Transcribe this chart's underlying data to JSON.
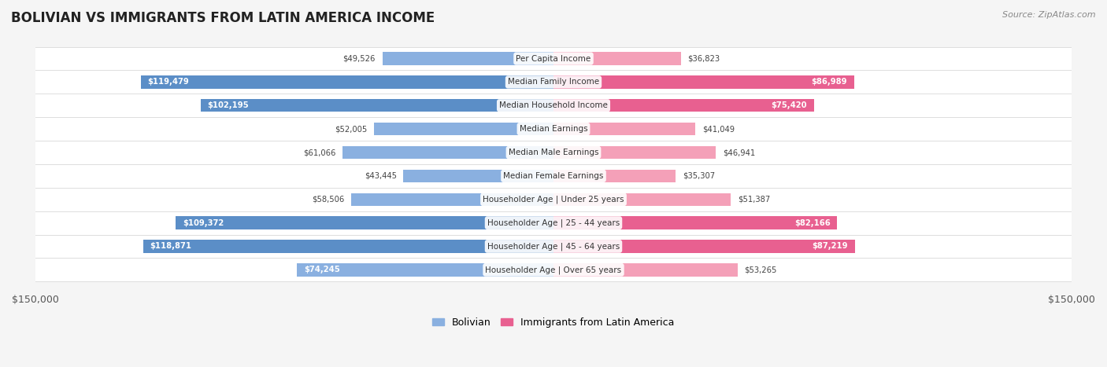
{
  "title": "BOLIVIAN VS IMMIGRANTS FROM LATIN AMERICA INCOME",
  "source": "Source: ZipAtlas.com",
  "categories": [
    "Per Capita Income",
    "Median Family Income",
    "Median Household Income",
    "Median Earnings",
    "Median Male Earnings",
    "Median Female Earnings",
    "Householder Age | Under 25 years",
    "Householder Age | 25 - 44 years",
    "Householder Age | 45 - 64 years",
    "Householder Age | Over 65 years"
  ],
  "bolivian_values": [
    49526,
    119479,
    102195,
    52005,
    61066,
    43445,
    58506,
    109372,
    118871,
    74245
  ],
  "immigrant_values": [
    36823,
    86989,
    75420,
    41049,
    46941,
    35307,
    51387,
    82166,
    87219,
    53265
  ],
  "bolivian_labels": [
    "$49,526",
    "$119,479",
    "$102,195",
    "$52,005",
    "$61,066",
    "$43,445",
    "$58,506",
    "$109,372",
    "$118,871",
    "$74,245"
  ],
  "immigrant_labels": [
    "$36,823",
    "$86,989",
    "$75,420",
    "$41,049",
    "$46,941",
    "$35,307",
    "$51,387",
    "$82,166",
    "$87,219",
    "$53,265"
  ],
  "bolivian_color": "#8ab0e0",
  "bolivian_color_dark": "#5b8ec7",
  "immigrant_color": "#f4a0b8",
  "immigrant_color_dark": "#e86090",
  "max_value": 150000,
  "background_color": "#f5f5f5",
  "row_bg_color": "#ffffff",
  "row_alt_color": "#f0f0f0",
  "legend_bolivian": "Bolivian",
  "legend_immigrant": "Immigrants from Latin America",
  "x_label_left": "$150,000",
  "x_label_right": "$150,000"
}
